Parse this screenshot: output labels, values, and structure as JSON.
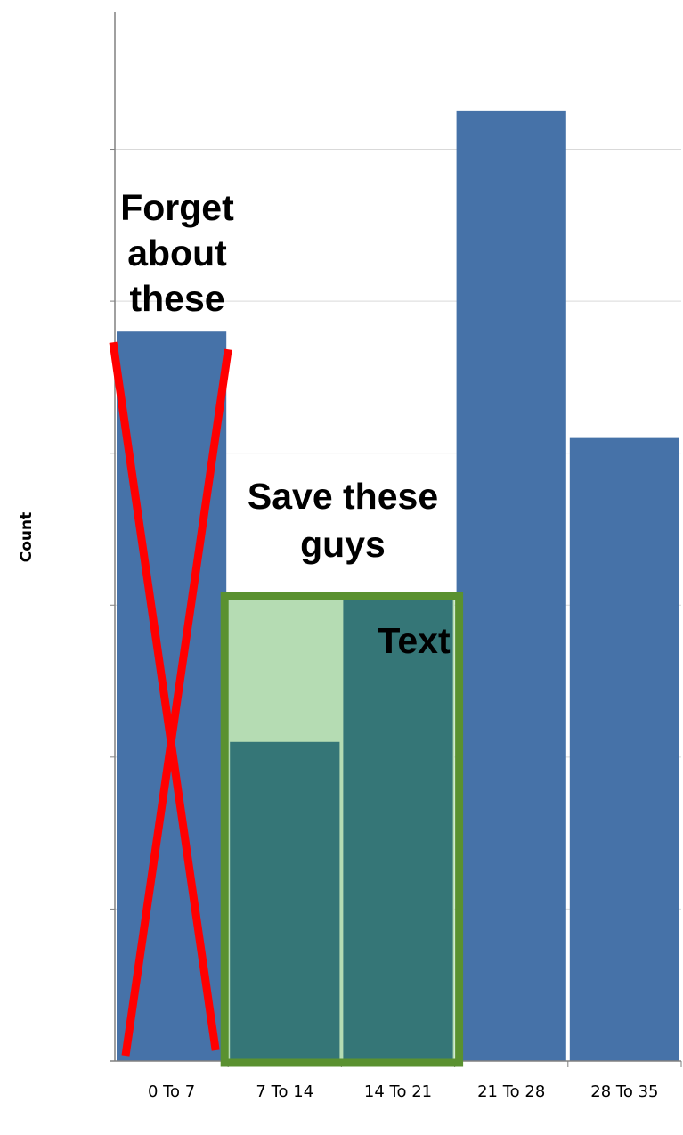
{
  "chart_data": {
    "type": "bar",
    "categories": [
      "0 To 7",
      "7 To 14",
      "14 To 21",
      "21 To 28",
      "28 To 35"
    ],
    "values": [
      4.8,
      2.1,
      3.05,
      6.25,
      4.1
    ],
    "ylabel": "Count",
    "xlabel": "",
    "ylim": [
      0,
      6.9
    ],
    "grid": true,
    "colors": {
      "bar": "#4672A8",
      "highlight_bar": "#357677",
      "highlight_fill": "#B5DCB3",
      "highlight_border": "#5A9130",
      "cross": "#FF0000",
      "grid": "#D9D9D9",
      "axis": "#808080"
    },
    "highlighted_categories": [
      "7 To 14",
      "14 To 21"
    ],
    "crossed_categories": [
      "0 To 7"
    ]
  },
  "annotations": {
    "forget": [
      "Forget",
      "about",
      "these"
    ],
    "save": [
      "Save these",
      "guys"
    ],
    "text": "Text"
  }
}
